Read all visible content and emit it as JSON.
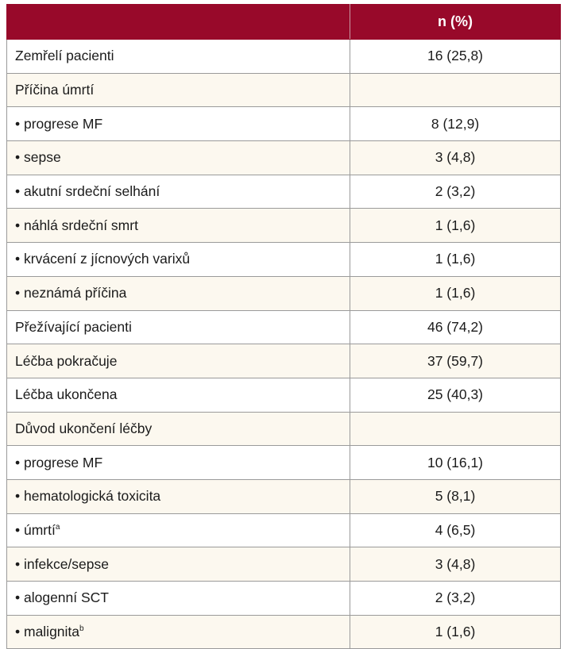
{
  "table": {
    "header": {
      "label": "",
      "value": "n (%)"
    },
    "rows": [
      {
        "label": "Zemřelí pacienti",
        "sup": "",
        "value": "16 (25,8)"
      },
      {
        "label": "Příčina úmrtí",
        "sup": "",
        "value": ""
      },
      {
        "label": "• progrese MF",
        "sup": "",
        "value": "8 (12,9)"
      },
      {
        "label": "• sepse",
        "sup": "",
        "value": "3 (4,8)"
      },
      {
        "label": "• akutní srdeční selhání",
        "sup": "",
        "value": "2 (3,2)"
      },
      {
        "label": "• náhlá srdeční smrt",
        "sup": "",
        "value": "1 (1,6)"
      },
      {
        "label": "• krvácení z jícnových varixů",
        "sup": "",
        "value": "1 (1,6)"
      },
      {
        "label": "• neznámá příčina",
        "sup": "",
        "value": "1 (1,6)"
      },
      {
        "label": "Přežívající pacienti",
        "sup": "",
        "value": "46 (74,2)"
      },
      {
        "label": "Léčba pokračuje",
        "sup": "",
        "value": "37 (59,7)"
      },
      {
        "label": "Léčba ukončena",
        "sup": "",
        "value": "25 (40,3)"
      },
      {
        "label": "Důvod ukončení léčby",
        "sup": "",
        "value": ""
      },
      {
        "label": "• progrese MF",
        "sup": "",
        "value": "10 (16,1)"
      },
      {
        "label": "• hematologická toxicita",
        "sup": "",
        "value": "5 (8,1)"
      },
      {
        "label": "• úmrtí",
        "sup": "a",
        "value": "4 (6,5)"
      },
      {
        "label": "• infekce/sepse",
        "sup": "",
        "value": "3 (4,8)"
      },
      {
        "label": "• alogenní SCT",
        "sup": "",
        "value": "2 (3,2)"
      },
      {
        "label": "• malignita",
        "sup": "b",
        "value": "1 (1,6)"
      }
    ]
  }
}
